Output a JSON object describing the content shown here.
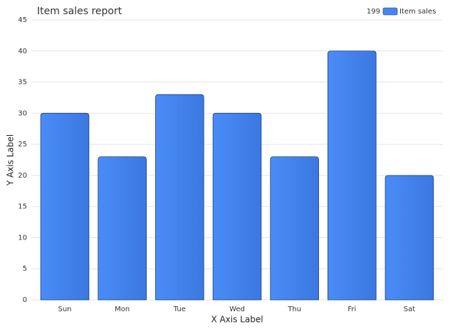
{
  "chart_data": {
    "type": "bar",
    "title": "Item sales report",
    "x_label": "X Axis Label",
    "y_label": "Y Axis Label",
    "legend_total": 199,
    "categories": [
      "Sun",
      "Mon",
      "Tue",
      "Wed",
      "Thu",
      "Fri",
      "Sat"
    ],
    "series": [
      {
        "name": "Item sales",
        "color": "#4285f4",
        "values": [
          30,
          23,
          33,
          30,
          23,
          40,
          20
        ]
      }
    ],
    "ylim": [
      0,
      45
    ],
    "yticks": [
      0,
      5,
      10,
      15,
      20,
      25,
      30,
      35,
      40,
      45
    ],
    "grid": true,
    "legend": "top-right"
  }
}
